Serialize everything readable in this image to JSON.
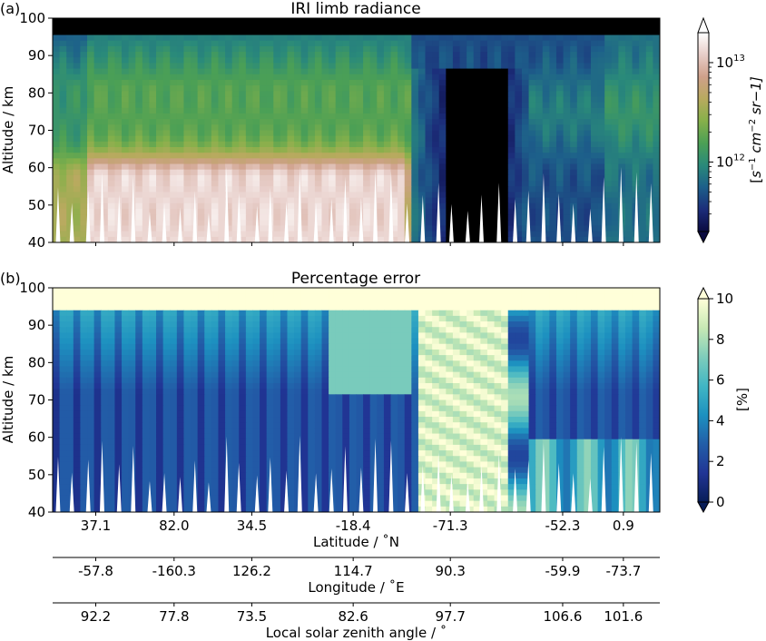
{
  "chart_data": [
    {
      "type": "heatmap",
      "panel_label": "(a)",
      "title": "IRI limb radiance",
      "ylabel": "Altitude / km",
      "ylim": [
        40,
        100
      ],
      "yticks": [
        "40",
        "50",
        "60",
        "70",
        "80",
        "90",
        "100"
      ],
      "colorbar": {
        "scale": "log",
        "label_parts": [
          "[",
          "s",
          "−1",
          " cm",
          "−2",
          " sr−1]"
        ],
        "ticks": [
          {
            "base": "10",
            "exp": "12",
            "value": 1000000000000.0
          },
          {
            "base": "10",
            "exp": "13",
            "value": 10000000000000.0
          }
        ],
        "range": [
          200000000000.0,
          20000000000000.0
        ],
        "colormap": [
          "#0a0a40",
          "#1c2d7a",
          "#1d5f8a",
          "#2a8a7a",
          "#4ca055",
          "#86b04a",
          "#b8aa5e",
          "#cfa08a",
          "#e7cdc8",
          "#ffffff"
        ],
        "extend": "both"
      },
      "colors": {
        "masked": "#000000",
        "gap": "#ffffff"
      }
    },
    {
      "type": "heatmap",
      "panel_label": "(b)",
      "title": "Percentage error",
      "ylabel": "Altitude / km",
      "ylim": [
        40,
        100
      ],
      "yticks": [
        "40",
        "50",
        "60",
        "70",
        "80",
        "90",
        "100"
      ],
      "colorbar": {
        "scale": "linear",
        "label": "[%]",
        "ticks": [
          "0",
          "2",
          "4",
          "6",
          "8",
          "10"
        ],
        "range": [
          0,
          10
        ],
        "colormap": [
          "#081d58",
          "#213595",
          "#225ea8",
          "#1d91c0",
          "#41b6c4",
          "#7fcdbb",
          "#c7e9b4",
          "#ffffd9"
        ],
        "extend": "both"
      },
      "x_axes": [
        {
          "label": "Latitude / ˚N",
          "ticks": [
            "37.1",
            "82.0",
            "34.5",
            "-18.4",
            "-71.3",
            "-52.3",
            "0.9"
          ]
        },
        {
          "label": "Longitude / ˚E",
          "ticks": [
            "-57.8",
            "-160.3",
            "126.2",
            "114.7",
            "90.3",
            "-59.9",
            "-73.7"
          ]
        },
        {
          "label": "Local solar zenith angle / ˚",
          "ticks": [
            "92.2",
            "77.8",
            "73.5",
            "82.6",
            "97.7",
            "106.6",
            "101.6"
          ]
        }
      ]
    }
  ]
}
